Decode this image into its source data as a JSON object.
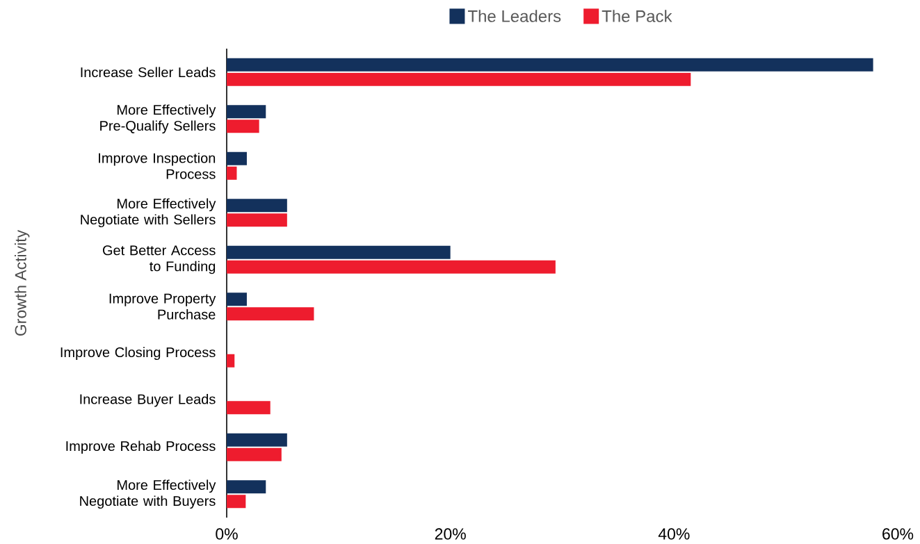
{
  "chart_data": {
    "type": "bar",
    "orientation": "horizontal",
    "ylabel": "Growth Activity",
    "categories": [
      "Increase Seller Leads",
      "More Effectively Pre-Qualify Sellers",
      "Improve Inspection Process",
      "More Effectively Negotiate with Sellers",
      "Get Better Access to Funding",
      "Improve Property Purchase",
      "Improve Closing Process",
      "Increase Buyer Leads",
      "Improve Rehab Process",
      "More Effectively Negotiate with Buyers"
    ],
    "series": [
      {
        "name": "The Leaders",
        "color": "#13315c",
        "values": [
          57.8,
          3.5,
          1.8,
          5.4,
          20,
          1.8,
          0,
          0,
          5.4,
          3.5
        ]
      },
      {
        "name": "The Pack",
        "color": "#ee1c2e",
        "values": [
          41.5,
          2.9,
          0.9,
          5.4,
          29.4,
          7.8,
          0.7,
          3.9,
          4.9,
          1.7
        ]
      }
    ],
    "xlim": [
      0,
      60
    ],
    "xticks": [
      {
        "value": 0,
        "label": "0%"
      },
      {
        "value": 20,
        "label": "20%"
      },
      {
        "value": 40,
        "label": "40%"
      },
      {
        "value": 60,
        "label": "60%"
      }
    ],
    "grid": false,
    "legend": "top"
  }
}
